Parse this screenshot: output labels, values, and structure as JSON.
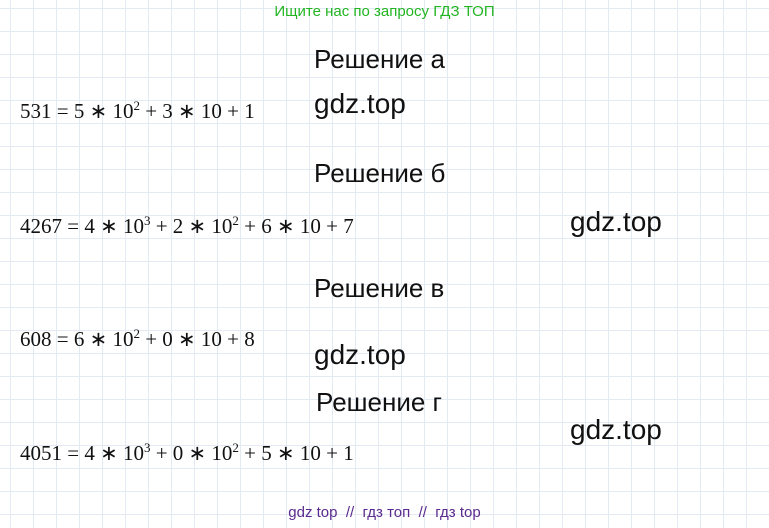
{
  "header": {
    "text": "Ищите нас по запросу ГДЗ ТОП"
  },
  "sections": [
    {
      "heading": "Решение а",
      "equation": [
        "531 = 5 ∗ 10",
        "2",
        " + 3 ∗ 10 + 1"
      ]
    },
    {
      "heading": "Решение б",
      "equation": [
        "4267 = 4 ∗ 10",
        "3",
        " + 2 ∗ 10",
        "2",
        " + 6 ∗ 10 + 7"
      ]
    },
    {
      "heading": "Решение в",
      "equation": [
        "608 = 6 ∗ 10",
        "2",
        " + 0 ∗ 10 + 8"
      ]
    },
    {
      "heading": "Решение г",
      "equation": [
        "4051 = 4 ∗ 10",
        "3",
        " + 0 ∗ 10",
        "2",
        " + 5 ∗ 10 + 1"
      ]
    }
  ],
  "watermarks": [
    "gdz.top",
    "gdz.top",
    "gdz.top",
    "gdz.top"
  ],
  "footer": {
    "text": "gdz top  //  гдз топ  //  гдз top"
  }
}
